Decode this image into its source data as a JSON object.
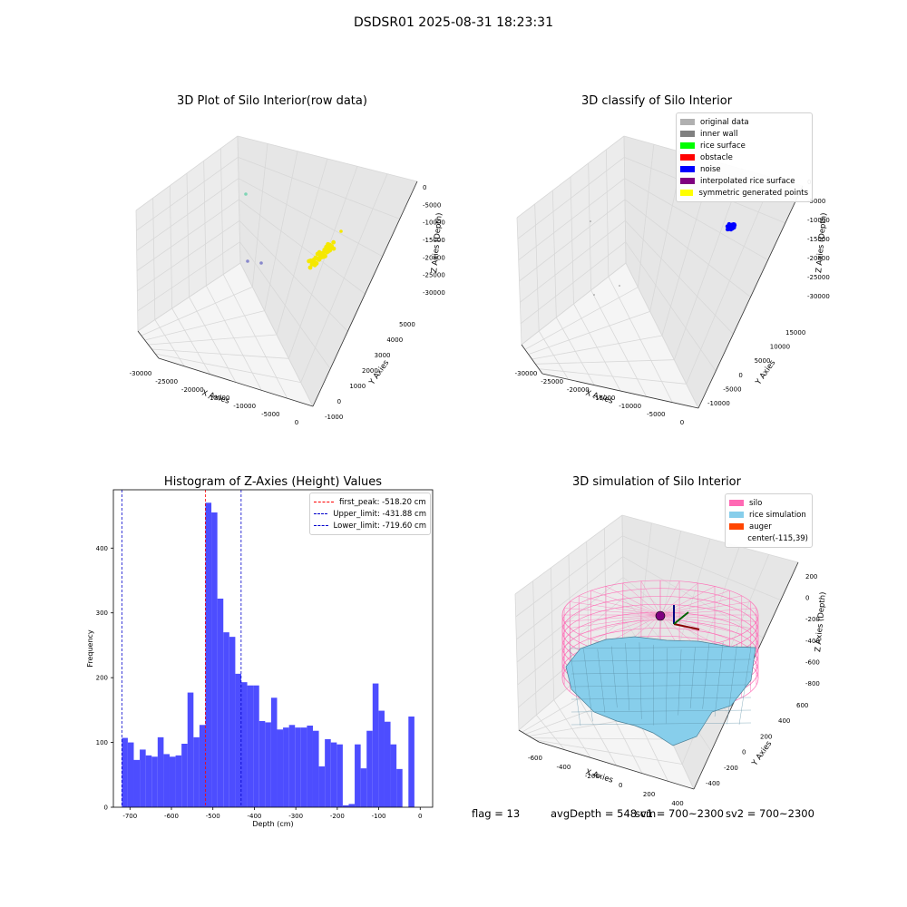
{
  "suptitle": "DSDSR01 2025-08-31 18:23:31",
  "panels": {
    "raw": {
      "title": "3D Plot of Silo Interior(row data)",
      "xlabel": "X Axies",
      "ylabel": "Y Axies",
      "zlabel": "Z Axies (Depth)",
      "xticks": [
        "-30000",
        "-25000",
        "-20000",
        "-15000",
        "-10000",
        "-5000",
        "0"
      ],
      "yticks": [
        "-1000",
        "0",
        "1000",
        "2000",
        "3000",
        "4000",
        "5000"
      ],
      "zticks": [
        "0",
        "-5000",
        "-10000",
        "-15000",
        "-20000",
        "-25000",
        "-30000"
      ]
    },
    "classify": {
      "title": "3D classify of Silo Interior",
      "xlabel": "X Axies",
      "ylabel": "Y Axies",
      "zlabel": "Z Axies (Depth)",
      "xticks": [
        "-30000",
        "-25000",
        "-20000",
        "-15000",
        "-10000",
        "-5000",
        "0"
      ],
      "yticks": [
        "-10000",
        "-5000",
        "0",
        "5000",
        "10000",
        "15000"
      ],
      "zticks": [
        "0",
        "-5000",
        "-10000",
        "-15000",
        "-20000",
        "-25000",
        "-30000"
      ],
      "legend": [
        {
          "label": "original data",
          "color": "#b0b0b0"
        },
        {
          "label": "inner wall",
          "color": "#808080"
        },
        {
          "label": "rice surface",
          "color": "#00ff00"
        },
        {
          "label": "obstacle",
          "color": "#ff0000"
        },
        {
          "label": "noise",
          "color": "#0000ff"
        },
        {
          "label": "interpolated rice surface",
          "color": "#800080"
        },
        {
          "label": "symmetric generated points",
          "color": "#ffff00"
        }
      ]
    },
    "simulation": {
      "title": "3D simulation of Silo Interior",
      "xlabel": "X Axies",
      "ylabel": "Y Axies",
      "zlabel": "Z Axies (Depth)",
      "xticks": [
        "-600",
        "-400",
        "-200",
        "0",
        "200",
        "400"
      ],
      "yticks": [
        "-400",
        "-200",
        "0",
        "200",
        "400",
        "600"
      ],
      "zticks": [
        "200",
        "0",
        "-200",
        "-400",
        "-600",
        "-800"
      ],
      "legend": [
        {
          "label": "silo",
          "color": "#ff69b4"
        },
        {
          "label": "rice simulation",
          "color": "#87ceeb"
        },
        {
          "label": "auger",
          "color": "#ff4500"
        },
        {
          "label": "center(-115,39)",
          "color": ""
        }
      ]
    }
  },
  "footer": {
    "flag": "flag = 13",
    "avg": "avgDepth = 548 cm",
    "sv1": "sv1 = 700~2300",
    "sv2": "sv2 = 700~2300"
  },
  "colors": {
    "hist_bar": "#4d4dff",
    "peak_line": "#ff0000",
    "limit_line": "#0000cc",
    "pane": "#f2f2f2",
    "silo": "#ff69b4",
    "rice": "#87ceeb",
    "yellow": "#f5e800",
    "noise": "#0000ff"
  },
  "chart_data": [
    {
      "type": "bar",
      "title": "Histogram of Z-Axies (Height) Values",
      "xlabel": "Depth (cm)",
      "ylabel": "Frequency",
      "xlim": [
        -740,
        30
      ],
      "ylim": [
        0,
        490
      ],
      "xticks": [
        -700,
        -600,
        -500,
        -400,
        -300,
        -200,
        -100,
        0
      ],
      "yticks": [
        0,
        100,
        200,
        300,
        400
      ],
      "bin_width": 14.4,
      "bin_start": -719.6,
      "counts": [
        107,
        100,
        73,
        89,
        80,
        78,
        108,
        82,
        78,
        80,
        98,
        177,
        108,
        127,
        470,
        455,
        322,
        270,
        263,
        206,
        193,
        188,
        188,
        133,
        131,
        169,
        120,
        123,
        127,
        123,
        123,
        126,
        118,
        63,
        105,
        100,
        97,
        3,
        5,
        97,
        60,
        118,
        191,
        149,
        132,
        97,
        59,
        0,
        140
      ],
      "lines": [
        {
          "label": "first_peak: -518.20 cm",
          "value": -518.2,
          "color": "#ff0000"
        },
        {
          "label": "Upper_limit: -431.88 cm",
          "value": -431.88,
          "color": "#0000cc"
        },
        {
          "label": "Lower_limit: -719.60 cm",
          "value": -719.6,
          "color": "#0000cc"
        }
      ],
      "legend_position": "upper right",
      "grid": false
    }
  ]
}
